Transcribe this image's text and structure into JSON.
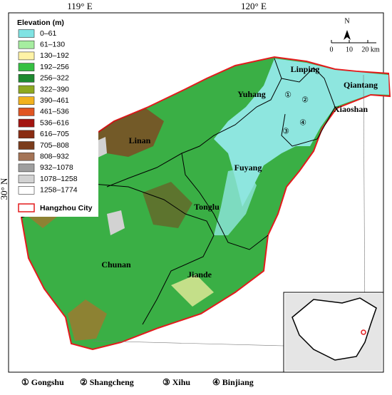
{
  "map": {
    "lon_labels": [
      "119° E",
      "120° E"
    ],
    "lat_label": "30° N",
    "legend": {
      "title": "Elevation (m)",
      "items": [
        {
          "label": "0–61",
          "color": "#7fe3e3"
        },
        {
          "label": "61–130",
          "color": "#a6eda0"
        },
        {
          "label": "130–192",
          "color": "#fff3a6"
        },
        {
          "label": "192–256",
          "color": "#35c043"
        },
        {
          "label": "256–322",
          "color": "#1e8a30"
        },
        {
          "label": "322–390",
          "color": "#8ea920"
        },
        {
          "label": "390–461",
          "color": "#f2b21e"
        },
        {
          "label": "461–536",
          "color": "#e05522"
        },
        {
          "label": "536–616",
          "color": "#a31410"
        },
        {
          "label": "616–705",
          "color": "#8a2c12"
        },
        {
          "label": "705–808",
          "color": "#7b3c1c"
        },
        {
          "label": "808–932",
          "color": "#a47456"
        },
        {
          "label": "932–1078",
          "color": "#9f9f9f"
        },
        {
          "label": "1078–1258",
          "color": "#d2d2d2"
        },
        {
          "label": "1258–1774",
          "color": "#ffffff"
        }
      ],
      "boundary": "Hangzhou City"
    },
    "scale": {
      "north": "N",
      "ticks": [
        "0",
        "10",
        "20 km"
      ]
    },
    "districts": [
      "Linping",
      "Yuhang",
      "Qiantang",
      "Xiaoshan",
      "Linan",
      "Fuyang",
      "Tonglu",
      "Chunan",
      "Jiande"
    ],
    "markers": [
      "①",
      "②",
      "③",
      "④"
    ],
    "key": [
      "① Gongshu",
      "② Shangcheng",
      "③ Xihu",
      "④ Binjiang"
    ]
  }
}
